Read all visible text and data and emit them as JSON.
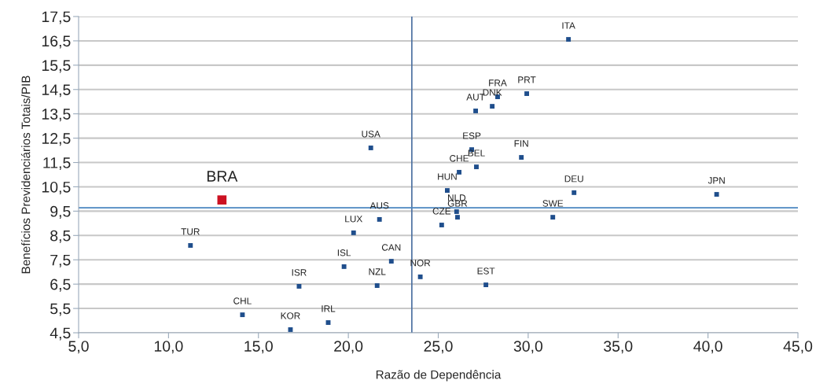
{
  "chart_data": {
    "type": "scatter",
    "xlabel": "Razão de Dependência",
    "ylabel": "Benefícios Previdenciários Totais/PIB",
    "xlim": [
      5,
      45
    ],
    "ylim": [
      4.5,
      17.5
    ],
    "xticks": [
      {
        "value": 5,
        "label": "5,0"
      },
      {
        "value": 10,
        "label": "10,0"
      },
      {
        "value": 15,
        "label": "15,0"
      },
      {
        "value": 20,
        "label": "20,0"
      },
      {
        "value": 25,
        "label": "25,0"
      },
      {
        "value": 30,
        "label": "30,0"
      },
      {
        "value": 35,
        "label": "35,0"
      },
      {
        "value": 40,
        "label": "40,0"
      },
      {
        "value": 45,
        "label": "45,0"
      }
    ],
    "yticks": [
      {
        "value": 4.5,
        "label": "4,5"
      },
      {
        "value": 5.5,
        "label": "5,5"
      },
      {
        "value": 6.5,
        "label": "6,5"
      },
      {
        "value": 7.5,
        "label": "7,5"
      },
      {
        "value": 8.5,
        "label": "8,5"
      },
      {
        "value": 9.5,
        "label": "9,5"
      },
      {
        "value": 10.5,
        "label": "10,5"
      },
      {
        "value": 11.5,
        "label": "11,5"
      },
      {
        "value": 12.5,
        "label": "12,5"
      },
      {
        "value": 13.5,
        "label": "13,5"
      },
      {
        "value": 14.5,
        "label": "14,5"
      },
      {
        "value": 15.5,
        "label": "15,5"
      },
      {
        "value": 16.5,
        "label": "16,5"
      },
      {
        "value": 17.5,
        "label": "17,5"
      }
    ],
    "grid": "y",
    "marker": "square",
    "legend": false,
    "series": [
      {
        "color": "#1f4e8c",
        "x": [
          32.24,
          29.92,
          28.3,
          28.0,
          27.08,
          26.86,
          27.12,
          26.16,
          29.62,
          25.5,
          26.02,
          26.07,
          25.19,
          31.37,
          32.55,
          40.48,
          21.25,
          21.73,
          20.29,
          11.22,
          19.76,
          22.39,
          21.6,
          24.0,
          27.65,
          17.26,
          14.11,
          16.78,
          18.88
        ],
        "values": [
          16.56,
          14.33,
          14.2,
          13.81,
          13.62,
          12.03,
          11.32,
          11.1,
          11.71,
          10.35,
          9.48,
          9.25,
          8.93,
          9.25,
          10.26,
          10.19,
          12.1,
          9.16,
          8.61,
          8.09,
          7.22,
          7.44,
          6.44,
          6.8,
          6.47,
          6.41,
          5.24,
          4.63,
          4.92
        ]
      },
      {
        "color": "#cc1122",
        "x": [
          12.97
        ],
        "values": [
          9.96
        ]
      }
    ],
    "ref_lines": [
      {
        "axis": "x",
        "value": 23.53,
        "color": "#4a6fa0"
      },
      {
        "axis": "y",
        "value": 9.64,
        "color": "#4a86c0"
      }
    ],
    "annotations": [
      {
        "text": "ITA",
        "x": 32.24,
        "y": 16.56
      },
      {
        "text": "PRT",
        "x": 29.92,
        "y": 14.33
      },
      {
        "text": "FRA",
        "x": 28.3,
        "y": 14.2
      },
      {
        "text": "DNK",
        "x": 28.0,
        "y": 13.81
      },
      {
        "text": "AUT",
        "x": 27.08,
        "y": 13.62
      },
      {
        "text": "ESP",
        "x": 26.86,
        "y": 12.03
      },
      {
        "text": "BEL",
        "x": 27.12,
        "y": 11.32
      },
      {
        "text": "CHE",
        "x": 26.16,
        "y": 11.1
      },
      {
        "text": "FIN",
        "x": 29.62,
        "y": 11.71
      },
      {
        "text": "HUN",
        "x": 25.5,
        "y": 10.35
      },
      {
        "text": "NLD",
        "x": 26.02,
        "y": 9.48
      },
      {
        "text": "GBR",
        "x": 26.07,
        "y": 9.25
      },
      {
        "text": "CZE",
        "x": 25.19,
        "y": 8.93
      },
      {
        "text": "SWE",
        "x": 31.37,
        "y": 9.25
      },
      {
        "text": "DEU",
        "x": 32.55,
        "y": 10.26
      },
      {
        "text": "JPN",
        "x": 40.48,
        "y": 10.19
      },
      {
        "text": "USA",
        "x": 21.25,
        "y": 12.1
      },
      {
        "text": "AUS",
        "x": 21.73,
        "y": 9.16
      },
      {
        "text": "LUX",
        "x": 20.29,
        "y": 8.61
      },
      {
        "text": "TUR",
        "x": 11.22,
        "y": 8.09
      },
      {
        "text": "ISL",
        "x": 19.76,
        "y": 7.22
      },
      {
        "text": "CAN",
        "x": 22.39,
        "y": 7.44
      },
      {
        "text": "NZL",
        "x": 21.6,
        "y": 6.44
      },
      {
        "text": "NOR",
        "x": 24.0,
        "y": 6.8
      },
      {
        "text": "EST",
        "x": 27.65,
        "y": 6.47
      },
      {
        "text": "ISR",
        "x": 17.26,
        "y": 6.41
      },
      {
        "text": "CHL",
        "x": 14.11,
        "y": 5.24
      },
      {
        "text": "KOR",
        "x": 16.78,
        "y": 4.63
      },
      {
        "text": "IRL",
        "x": 18.88,
        "y": 4.92
      },
      {
        "text": "BRA",
        "x": 12.97,
        "y": 9.96
      }
    ]
  }
}
